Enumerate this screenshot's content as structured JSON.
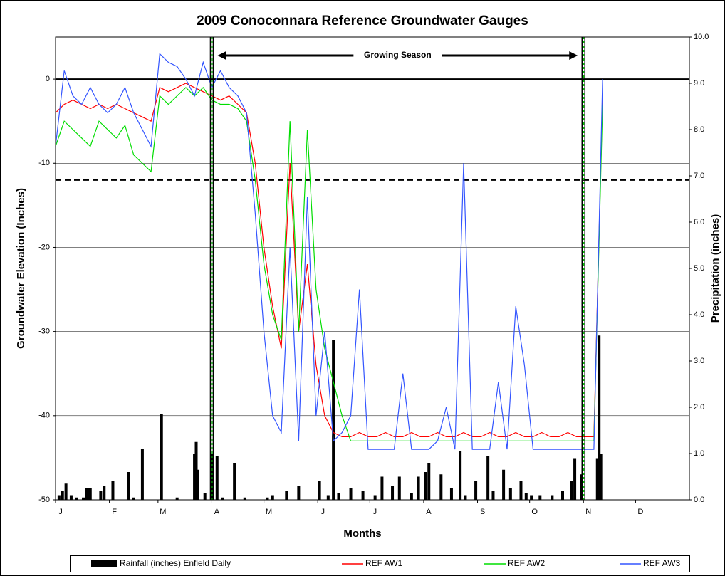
{
  "chart_data": {
    "type": "line",
    "title": "2009 Conoconnara Reference Groundwater Gauges",
    "x_label": "Months",
    "y_label": "Groundwater Elevation (Inches)",
    "y2_label": "Precipitation (inches)",
    "xlim": [
      0,
      365
    ],
    "xticks": [
      {
        "value": 0,
        "label": "J"
      },
      {
        "value": 31,
        "label": "F"
      },
      {
        "value": 59,
        "label": "M"
      },
      {
        "value": 90,
        "label": "A"
      },
      {
        "value": 120,
        "label": "M"
      },
      {
        "value": 151,
        "label": "J"
      },
      {
        "value": 181,
        "label": "J"
      },
      {
        "value": 212,
        "label": "A"
      },
      {
        "value": 243,
        "label": "S"
      },
      {
        "value": 273,
        "label": "O"
      },
      {
        "value": 304,
        "label": "N"
      },
      {
        "value": 334,
        "label": "D"
      }
    ],
    "ylim": [
      -50,
      5
    ],
    "yticks": [
      -50,
      -40,
      -30,
      -20,
      -10,
      0
    ],
    "y2lim": [
      0,
      10
    ],
    "y2ticks": [
      {
        "value": 0,
        "label": "0.0"
      },
      {
        "value": 1,
        "label": "1.0"
      },
      {
        "value": 2,
        "label": "2.0"
      },
      {
        "value": 3,
        "label": "3.0"
      },
      {
        "value": 4,
        "label": "4.0"
      },
      {
        "value": 5,
        "label": "5.0"
      },
      {
        "value": 6,
        "label": "6.0"
      },
      {
        "value": 7,
        "label": "7.0"
      },
      {
        "value": 8,
        "label": "8.0"
      },
      {
        "value": 9,
        "label": "9.0"
      },
      {
        "value": 10,
        "label": "10.0"
      }
    ],
    "grid": true,
    "reference_lines": [
      {
        "value": 0,
        "style": "solid"
      },
      {
        "value": -12,
        "style": "dashed"
      }
    ],
    "season_lines": [
      90,
      304
    ],
    "annotation": "Growing Season",
    "bars": {
      "name": "Rainfall (inches) Enfield Daily",
      "color": "#000000",
      "axis": "y2",
      "x": [
        2,
        4,
        6,
        9,
        12,
        16,
        18,
        19,
        20,
        26,
        28,
        33,
        42,
        45,
        50,
        61,
        70,
        80,
        81,
        82,
        86,
        90,
        93,
        96,
        103,
        109,
        122,
        125,
        133,
        140,
        152,
        157,
        160,
        163,
        170,
        177,
        184,
        188,
        194,
        198,
        205,
        209,
        213,
        215,
        222,
        228,
        233,
        236,
        242,
        249,
        252,
        258,
        262,
        268,
        271,
        274,
        279,
        286,
        292,
        297,
        299,
        303,
        312,
        313,
        314
      ],
      "values": [
        0.1,
        0.2,
        0.35,
        0.1,
        0.05,
        0.05,
        0.25,
        0.25,
        0.25,
        0.2,
        0.3,
        0.4,
        0.6,
        0.05,
        1.1,
        1.85,
        0.05,
        1.0,
        1.25,
        0.65,
        0.15,
        1.0,
        0.95,
        0.05,
        0.8,
        0.05,
        0.05,
        0.1,
        0.2,
        0.3,
        0.4,
        0.1,
        3.45,
        0.15,
        0.25,
        0.2,
        0.1,
        0.5,
        0.3,
        0.5,
        0.15,
        0.5,
        0.6,
        0.8,
        0.55,
        0.25,
        1.05,
        0.1,
        0.4,
        0.95,
        0.2,
        0.65,
        0.25,
        0.4,
        0.15,
        0.1,
        0.1,
        0.1,
        0.2,
        0.4,
        0.9,
        0.55,
        0.9,
        3.55,
        1.0
      ]
    },
    "x": [
      0,
      5,
      10,
      15,
      20,
      25,
      30,
      35,
      40,
      45,
      50,
      55,
      60,
      65,
      70,
      75,
      80,
      85,
      90,
      95,
      100,
      105,
      110,
      115,
      120,
      125,
      130,
      135,
      140,
      145,
      150,
      155,
      160,
      165,
      170,
      175,
      180,
      185,
      190,
      195,
      200,
      205,
      210,
      215,
      220,
      225,
      230,
      235,
      240,
      245,
      250,
      255,
      260,
      265,
      270,
      275,
      280,
      285,
      290,
      295,
      300,
      305,
      310,
      315
    ],
    "series": [
      {
        "name": "REF AW1",
        "color": "#ff0000",
        "values": [
          -4,
          -3,
          -2.5,
          -3,
          -3.5,
          -3,
          -3.5,
          -3,
          -3.5,
          -4,
          -4.5,
          -5,
          -1,
          -1.5,
          -1,
          -0.5,
          -1,
          -1.5,
          -2,
          -2.5,
          -2,
          -3,
          -4,
          -10,
          -20,
          -27,
          -32,
          -10,
          -30,
          -22,
          -34,
          -40,
          -42,
          -42.5,
          -42.5,
          -42,
          -42.5,
          -42.5,
          -42,
          -42.5,
          -42.5,
          -42,
          -42.5,
          -42.5,
          -42,
          -42.5,
          -42.5,
          -42,
          -42.5,
          -42.5,
          -42,
          -42.5,
          -42.5,
          -42,
          -42.5,
          -42.5,
          -42,
          -42.5,
          -42.5,
          -42,
          -42.5,
          -42.5,
          -42.5,
          -2
        ]
      },
      {
        "name": "REF AW2",
        "color": "#00dd00",
        "values": [
          -8,
          -5,
          -6,
          -7,
          -8,
          -5,
          -6,
          -7,
          -5.5,
          -9,
          -10,
          -11,
          -2,
          -3,
          -2,
          -1,
          -2,
          -1,
          -2.5,
          -3,
          -3,
          -3.5,
          -5,
          -12,
          -22,
          -28,
          -31,
          -5,
          -30,
          -6,
          -25,
          -32,
          -36,
          -40,
          -43,
          -43,
          -43,
          -43,
          -43,
          -43,
          -43,
          -43,
          -43,
          -43,
          -43,
          -43,
          -43,
          -43,
          -43,
          -43,
          -43,
          -43,
          -43,
          -43,
          -43,
          -43,
          -43,
          -43,
          -43,
          -43,
          -43,
          -43,
          -43,
          -3
        ]
      },
      {
        "name": "REF AW3",
        "color": "#3355ff",
        "values": [
          -8,
          1,
          -2,
          -3,
          -1,
          -3,
          -4,
          -3,
          -1,
          -4,
          -6,
          -8,
          3,
          2,
          1.5,
          0,
          -2,
          2,
          -1,
          1,
          -1,
          -2,
          -4,
          -16,
          -30,
          -40,
          -42,
          -20,
          -43,
          -14,
          -40,
          -30,
          -43,
          -42,
          -40,
          -25,
          -44,
          -44,
          -44,
          -44,
          -35,
          -44,
          -44,
          -44,
          -43,
          -39,
          -44,
          -10,
          -44,
          -44,
          -44,
          -36,
          -44,
          -27,
          -34,
          -44,
          -44,
          -44,
          -44,
          -44,
          -44,
          -44,
          -44,
          0
        ]
      }
    ]
  }
}
